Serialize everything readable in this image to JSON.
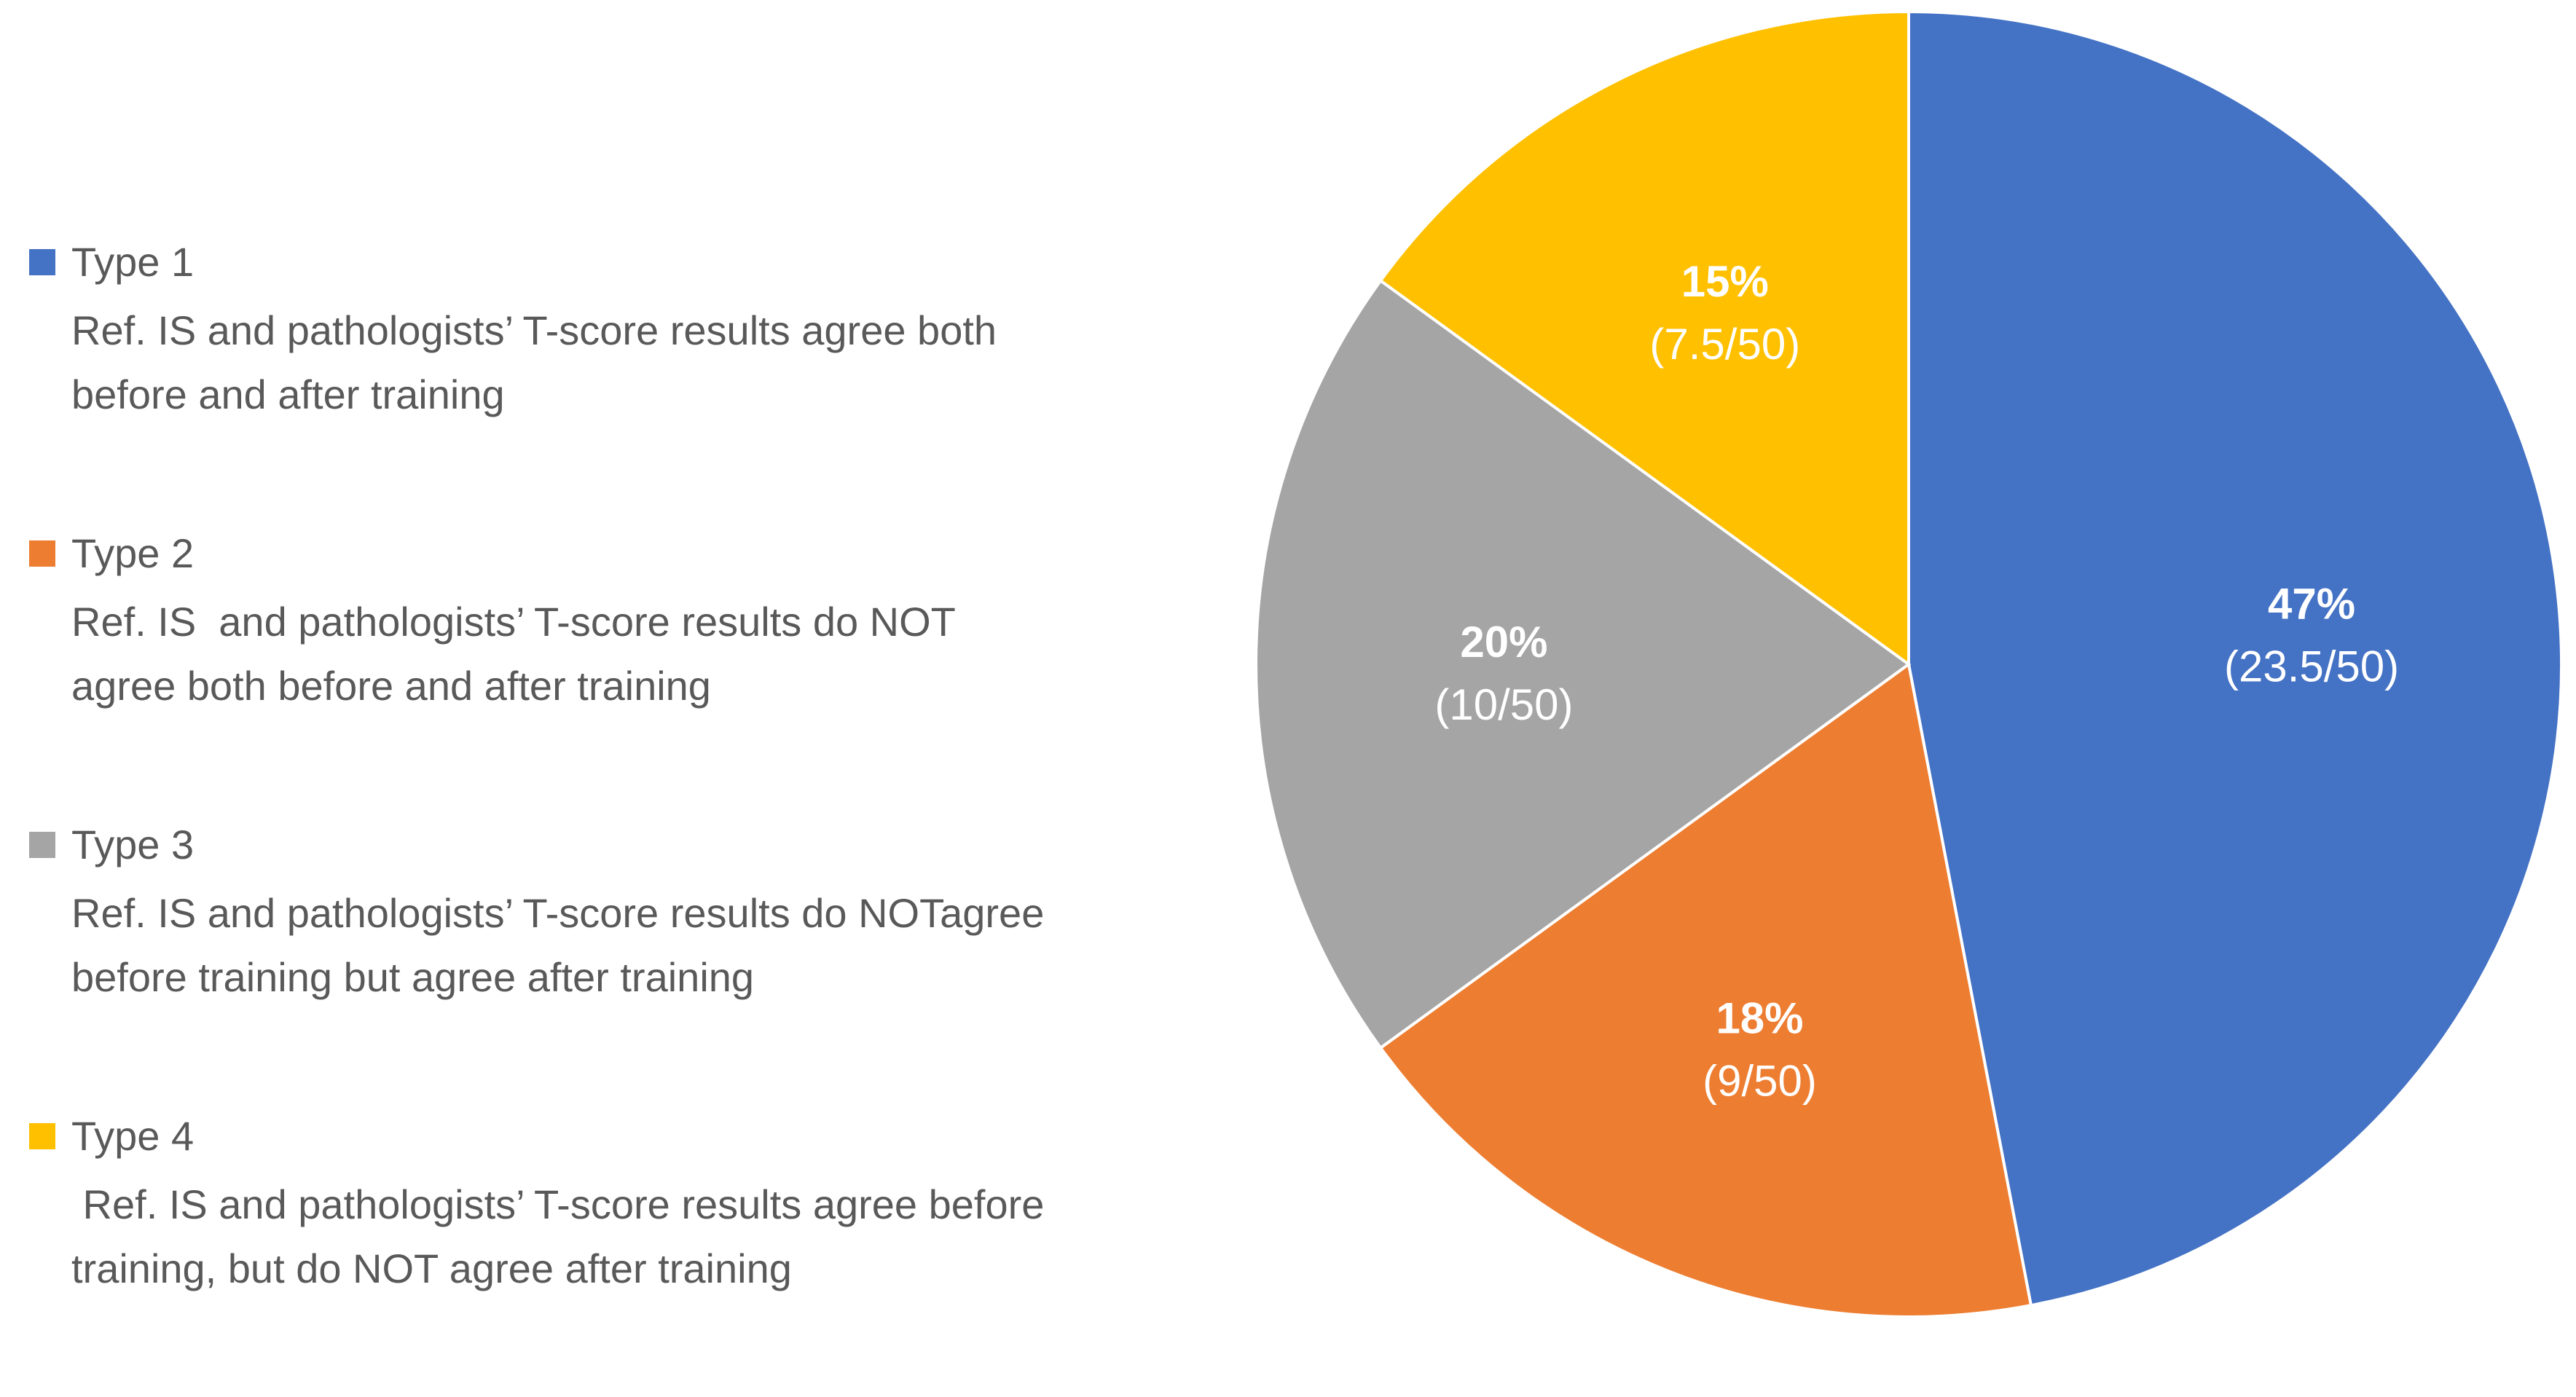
{
  "chart_data": {
    "type": "pie",
    "start_angle_deg": 0,
    "direction": "clockwise",
    "legend_position": "left",
    "slices": [
      {
        "name": "Type 1",
        "value": 23.5,
        "percent_label": "47%",
        "fraction_label": "(23.5/50)",
        "color": "#4472C4",
        "description": "Ref. IS and pathologists’ T-score results agree both\nbefore and after training"
      },
      {
        "name": "Type 2",
        "value": 9,
        "percent_label": "18%",
        "fraction_label": "(9/50)",
        "color": "#ED7D31",
        "description": "Ref. IS  and pathologists’ T-score results do NOT\nagree both before and after training"
      },
      {
        "name": "Type 3",
        "value": 10,
        "percent_label": "20%",
        "fraction_label": "(10/50)",
        "color": "#A5A5A5",
        "description": "Ref. IS and pathologists’ T-score results do NOTagree\nbefore training but agree after training"
      },
      {
        "name": "Type 4",
        "value": 7.5,
        "percent_label": "15%",
        "fraction_label": "(7.5/50)",
        "color": "#FFC000",
        "description": " Ref. IS and pathologists’ T-score results agree before\ntraining, but do NOT agree after training"
      }
    ]
  }
}
